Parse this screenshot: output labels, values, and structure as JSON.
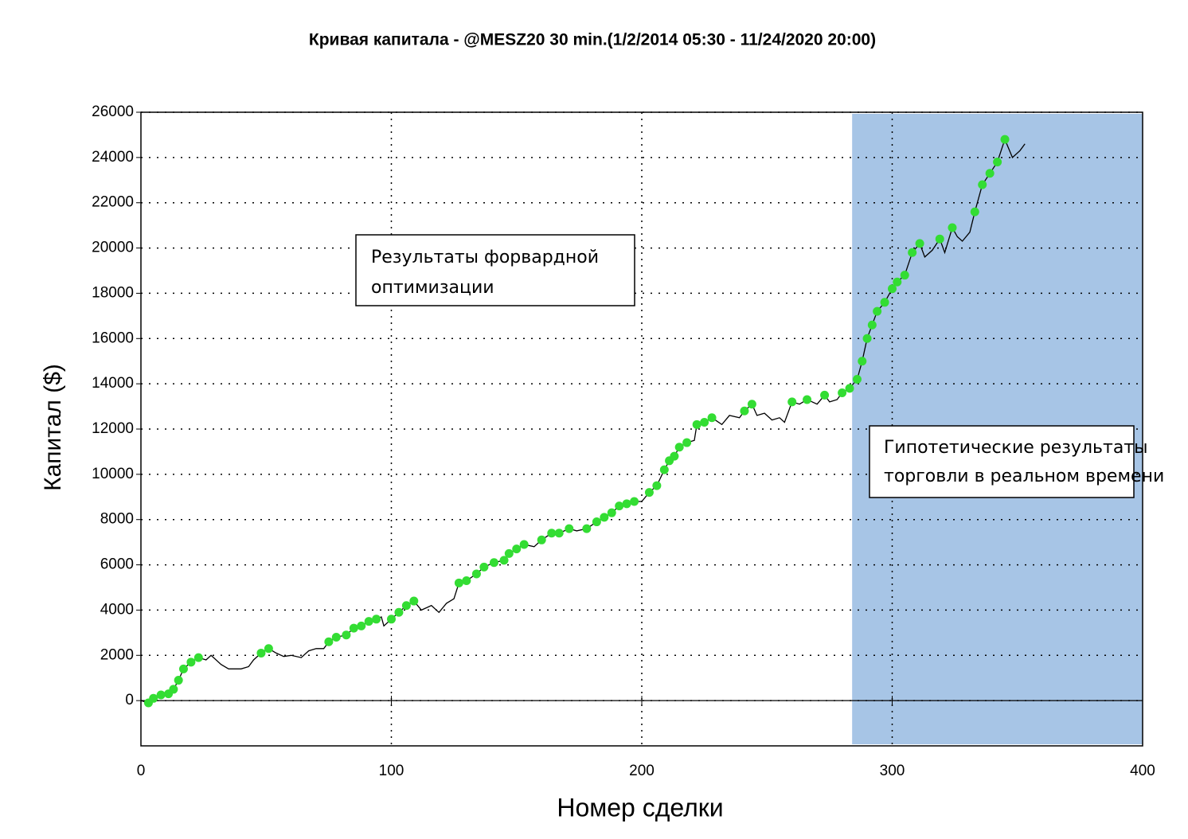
{
  "chart_data": {
    "type": "line",
    "title": "Кривая капитала - @MESZ20 30 min.(1/2/2014 05:30 - 11/24/2020 20:00)",
    "xlabel": "Номер сделки",
    "ylabel": "Капитал ($)",
    "xlim": [
      0,
      400
    ],
    "ylim": [
      -2000,
      26000
    ],
    "xticks": [
      0,
      100,
      200,
      300,
      400
    ],
    "yticks": [
      0,
      2000,
      4000,
      6000,
      8000,
      10000,
      12000,
      14000,
      16000,
      18000,
      20000,
      22000,
      24000,
      26000
    ],
    "grid": true,
    "highlight": {
      "xlim": [
        284,
        400
      ],
      "color": "#a7c5e6"
    },
    "annotations": [
      {
        "lines": [
          "Результаты форвардной",
          "оптимизации"
        ]
      },
      {
        "lines": [
          "Гипотетические результаты",
          "торговли в реальном времени"
        ]
      }
    ],
    "line": {
      "color": "#000000",
      "x": [
        0,
        3,
        5,
        8,
        11,
        13,
        15,
        17,
        20,
        23,
        26,
        28,
        32,
        35,
        40,
        43,
        45,
        48,
        51,
        54,
        57,
        60,
        64,
        67,
        70,
        73,
        75,
        78,
        82,
        85,
        88,
        91,
        94,
        96,
        97,
        100,
        103,
        106,
        109,
        112,
        116,
        119,
        122,
        125,
        127,
        130,
        134,
        137,
        141,
        145,
        147,
        150,
        153,
        157,
        160,
        164,
        167,
        171,
        174,
        178,
        182,
        185,
        188,
        191,
        194,
        197,
        200,
        203,
        206,
        209,
        211,
        213,
        215,
        218,
        221,
        222,
        225,
        228,
        232,
        235,
        239,
        241,
        244,
        246,
        249,
        252,
        255,
        257,
        260,
        263,
        266,
        270,
        273,
        275,
        278,
        280,
        283,
        286,
        288,
        290,
        292,
        294,
        297,
        300,
        302,
        305,
        308,
        311,
        313,
        316,
        319,
        321,
        324,
        326,
        328,
        331,
        333,
        336,
        339,
        342,
        345,
        348,
        351,
        353
      ],
      "values": [
        0,
        -100,
        100,
        250,
        300,
        500,
        900,
        1400,
        1700,
        1900,
        1800,
        2000,
        1600,
        1400,
        1400,
        1500,
        1800,
        2100,
        2300,
        2100,
        1950,
        2000,
        1900,
        2200,
        2300,
        2300,
        2600,
        2800,
        2900,
        3200,
        3300,
        3500,
        3600,
        3700,
        3300,
        3600,
        3900,
        4200,
        4400,
        4000,
        4200,
        3900,
        4300,
        4500,
        5200,
        5300,
        5600,
        5900,
        6100,
        6200,
        6500,
        6700,
        6900,
        6800,
        7100,
        7400,
        7400,
        7600,
        7500,
        7600,
        7900,
        8100,
        8300,
        8600,
        8700,
        8800,
        8800,
        9200,
        9500,
        10200,
        10600,
        10800,
        11200,
        11400,
        11500,
        12200,
        12300,
        12500,
        12200,
        12600,
        12500,
        12800,
        13100,
        12600,
        12700,
        12400,
        12500,
        12300,
        13200,
        13100,
        13300,
        13100,
        13500,
        13200,
        13300,
        13600,
        13800,
        14200,
        15000,
        16000,
        16600,
        17200,
        17600,
        18200,
        18500,
        18800,
        19800,
        20200,
        19600,
        19900,
        20400,
        19800,
        20900,
        20500,
        20300,
        20700,
        21600,
        22800,
        23300,
        23800,
        24800,
        24000,
        24300,
        24600
      ]
    },
    "markers": {
      "color": "#33dd33",
      "x": [
        3,
        5,
        8,
        11,
        13,
        15,
        17,
        20,
        23,
        48,
        51,
        75,
        78,
        82,
        85,
        88,
        91,
        94,
        100,
        103,
        106,
        109,
        127,
        130,
        134,
        137,
        141,
        145,
        147,
        150,
        153,
        160,
        164,
        167,
        171,
        178,
        182,
        185,
        188,
        191,
        194,
        197,
        203,
        206,
        209,
        211,
        213,
        215,
        218,
        222,
        225,
        228,
        241,
        244,
        260,
        266,
        273,
        280,
        283,
        286,
        288,
        290,
        292,
        294,
        297,
        300,
        302,
        305,
        308,
        311,
        319,
        324,
        333,
        336,
        339,
        342,
        345
      ],
      "values": [
        -100,
        100,
        250,
        300,
        500,
        900,
        1400,
        1700,
        1900,
        2100,
        2300,
        2600,
        2800,
        2900,
        3200,
        3300,
        3500,
        3600,
        3600,
        3900,
        4200,
        4400,
        5200,
        5300,
        5600,
        5900,
        6100,
        6200,
        6500,
        6700,
        6900,
        7100,
        7400,
        7400,
        7600,
        7600,
        7900,
        8100,
        8300,
        8600,
        8700,
        8800,
        9200,
        9500,
        10200,
        10600,
        10800,
        11200,
        11400,
        12200,
        12300,
        12500,
        12800,
        13100,
        13200,
        13300,
        13500,
        13600,
        13800,
        14200,
        15000,
        16000,
        16600,
        17200,
        17600,
        18200,
        18500,
        18800,
        19800,
        20200,
        20400,
        20900,
        21600,
        22800,
        23300,
        23800,
        24800
      ]
    }
  }
}
